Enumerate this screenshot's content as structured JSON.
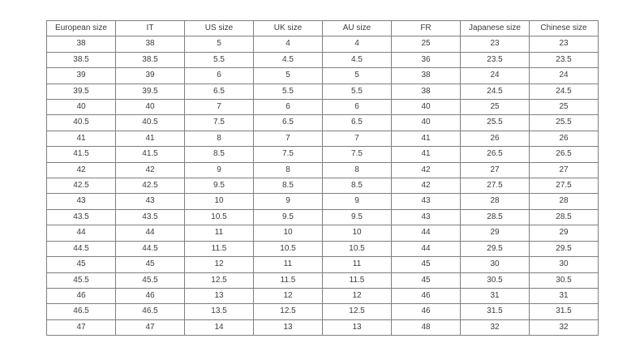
{
  "table": {
    "name": "shoe-size-conversion-chart",
    "columns": [
      "European size",
      "IT",
      "US size",
      "UK size",
      "AU size",
      "FR",
      "Japanese size",
      "Chinese size"
    ],
    "rows": [
      [
        "38",
        "38",
        "5",
        "4",
        "4",
        "25",
        "23",
        "23"
      ],
      [
        "38.5",
        "38.5",
        "5.5",
        "4.5",
        "4.5",
        "36",
        "23.5",
        "23.5"
      ],
      [
        "39",
        "39",
        "6",
        "5",
        "5",
        "38",
        "24",
        "24"
      ],
      [
        "39.5",
        "39.5",
        "6.5",
        "5.5",
        "5.5",
        "38",
        "24.5",
        "24.5"
      ],
      [
        "40",
        "40",
        "7",
        "6",
        "6",
        "40",
        "25",
        "25"
      ],
      [
        "40.5",
        "40.5",
        "7.5",
        "6.5",
        "6.5",
        "40",
        "25.5",
        "25.5"
      ],
      [
        "41",
        "41",
        "8",
        "7",
        "7",
        "41",
        "26",
        "26"
      ],
      [
        "41.5",
        "41.5",
        "8.5",
        "7.5",
        "7.5",
        "41",
        "26.5",
        "26.5"
      ],
      [
        "42",
        "42",
        "9",
        "8",
        "8",
        "42",
        "27",
        "27"
      ],
      [
        "42.5",
        "42.5",
        "9.5",
        "8.5",
        "8.5",
        "42",
        "27.5",
        "27.5"
      ],
      [
        "43",
        "43",
        "10",
        "9",
        "9",
        "43",
        "28",
        "28"
      ],
      [
        "43.5",
        "43.5",
        "10.5",
        "9.5",
        "9.5",
        "43",
        "28.5",
        "28.5"
      ],
      [
        "44",
        "44",
        "11",
        "10",
        "10",
        "44",
        "29",
        "29"
      ],
      [
        "44.5",
        "44.5",
        "11.5",
        "10.5",
        "10.5",
        "44",
        "29.5",
        "29.5"
      ],
      [
        "45",
        "45",
        "12",
        "11",
        "11",
        "45",
        "30",
        "30"
      ],
      [
        "45.5",
        "45.5",
        "12.5",
        "11.5",
        "11.5",
        "45",
        "30.5",
        "30.5"
      ],
      [
        "46",
        "46",
        "13",
        "12",
        "12",
        "46",
        "31",
        "31"
      ],
      [
        "46.5",
        "46.5",
        "13.5",
        "12.5",
        "12.5",
        "46",
        "31.5",
        "31.5"
      ],
      [
        "47",
        "47",
        "14",
        "13",
        "13",
        "48",
        "32",
        "32"
      ]
    ],
    "colors": {
      "border": "#7e7e7e",
      "text": "#3c3c3c",
      "background": "#ffffff"
    }
  }
}
